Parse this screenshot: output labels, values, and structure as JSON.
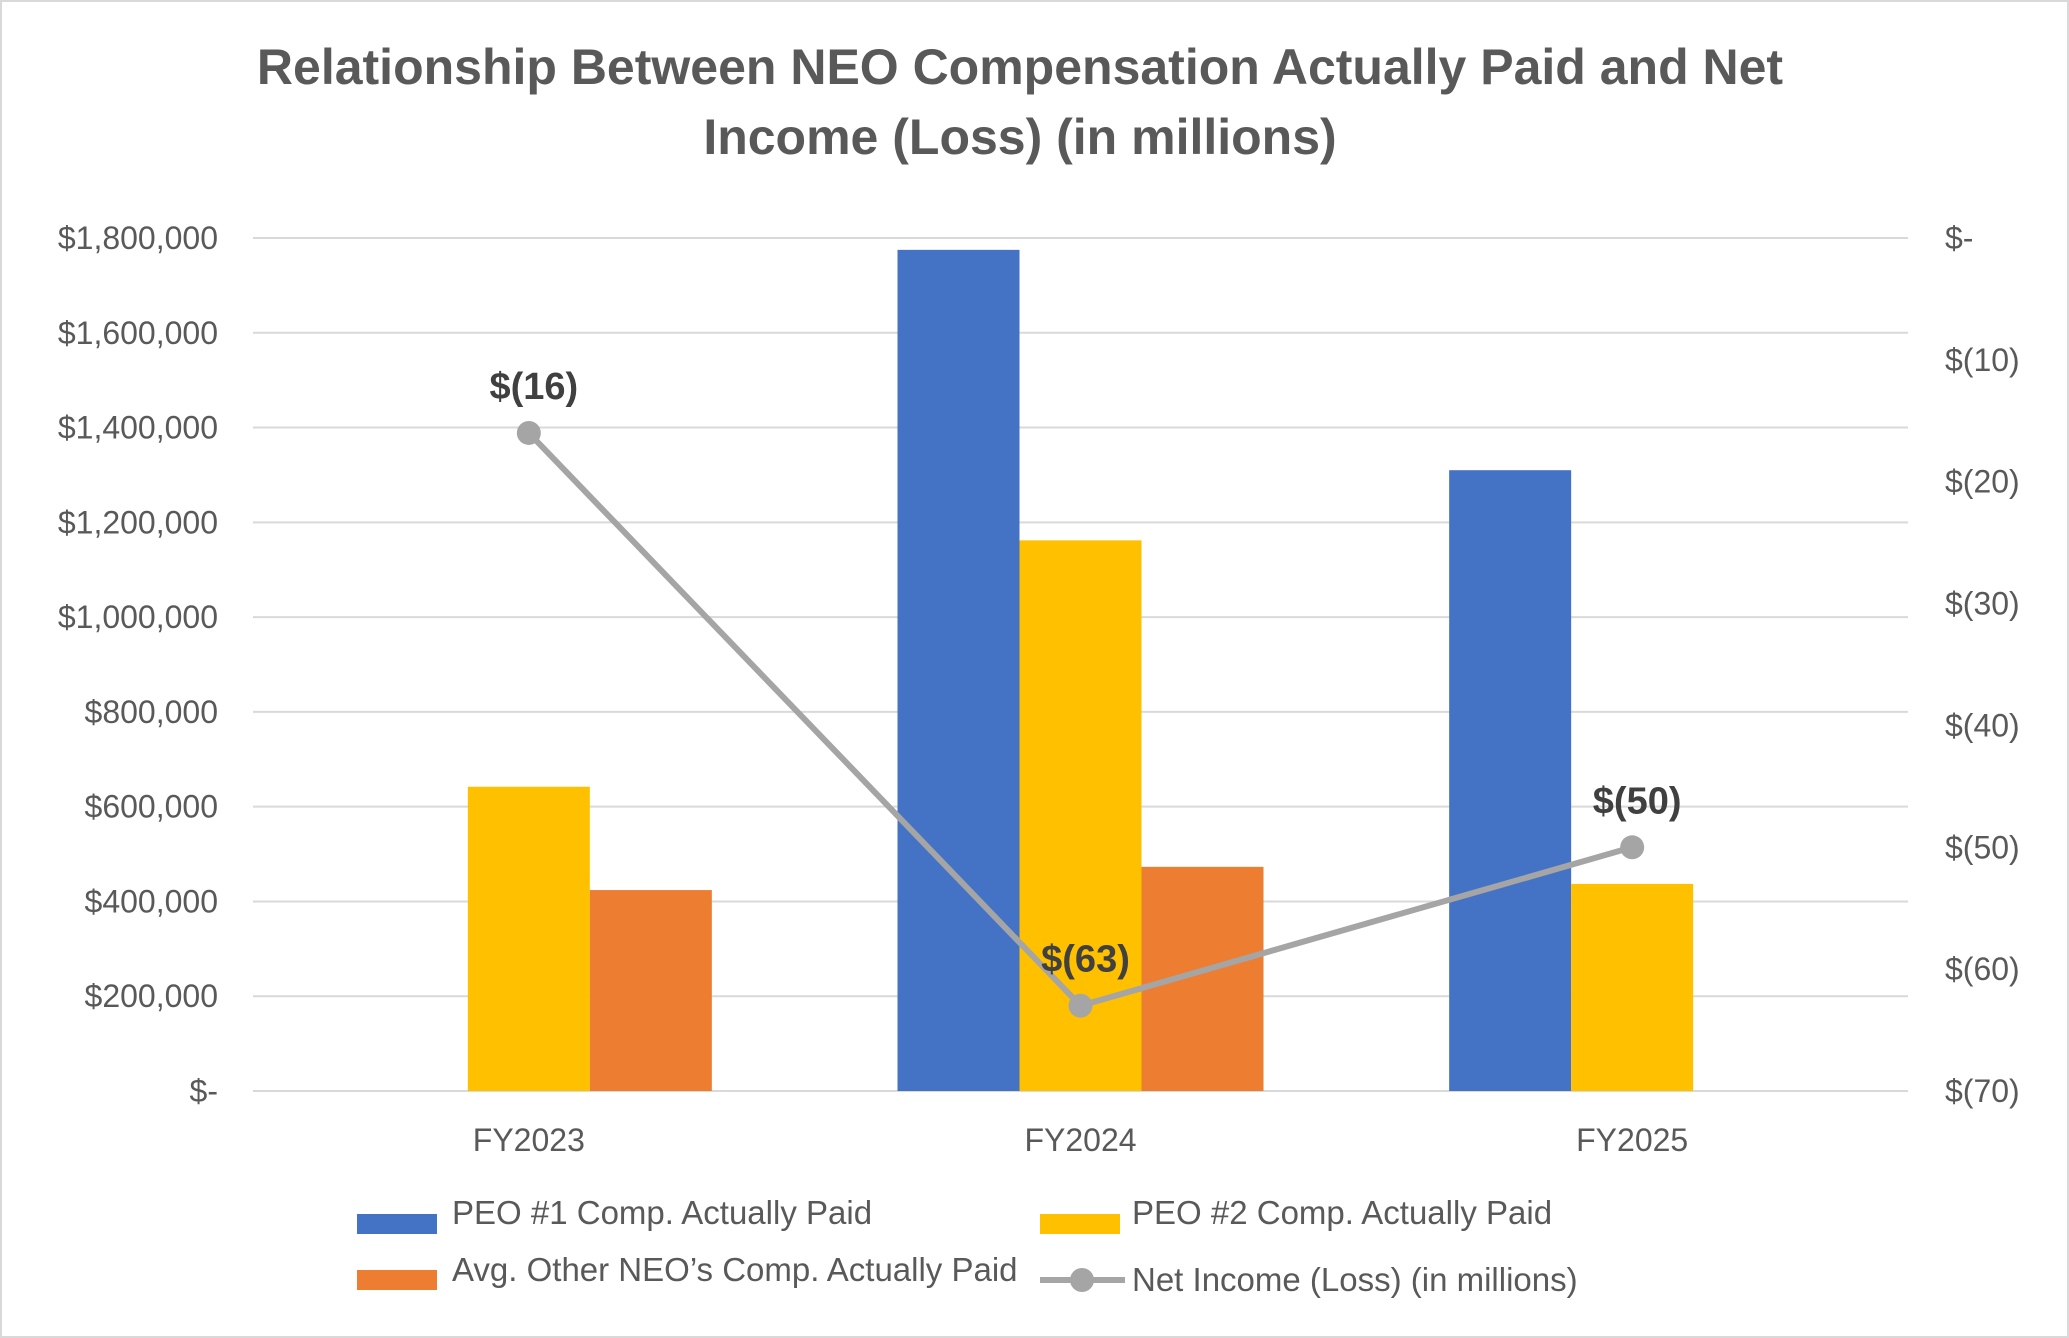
{
  "chart_data": {
    "type": "bar",
    "title_lines": [
      "Relationship Between NEO Compensation Actually Paid and Net",
      "Income (Loss) (in millions)"
    ],
    "categories": [
      "FY2023",
      "FY2024",
      "FY2025"
    ],
    "y_left": {
      "ylim": [
        0,
        1800000
      ],
      "tick_labels": [
        "$-",
        "$200,000",
        "$400,000",
        "$600,000",
        "$800,000",
        "$1,000,000",
        "$1,200,000",
        "$1,400,000",
        "$1,600,000",
        "$1,800,000"
      ]
    },
    "y_right": {
      "ylim": [
        -70,
        0
      ],
      "tick_labels": [
        "$(70)",
        "$(60)",
        "$(50)",
        "$(40)",
        "$(30)",
        "$(20)",
        "$(10)",
        "$-"
      ]
    },
    "series": [
      {
        "name": "PEO #1 Comp. Actually Paid",
        "type": "bar",
        "axis": "left",
        "color": "#4472C4",
        "values": [
          null,
          1775000,
          1310000
        ]
      },
      {
        "name": "PEO #2 Comp. Actually Paid",
        "type": "bar",
        "axis": "left",
        "color": "#FFC000",
        "values": [
          642000,
          1162000,
          437000
        ]
      },
      {
        "name": "Avg. Other NEO’s Comp. Actually Paid",
        "type": "bar",
        "axis": "left",
        "color": "#ED7D31",
        "values": [
          424000,
          null,
          null
        ]
      },
      {
        "name": "Net Income (Loss) (in millions)",
        "type": "line",
        "axis": "right",
        "color": "#A5A5A5",
        "values": [
          -16,
          -63,
          -50
        ],
        "labels": [
          "$(16)",
          "$(63)",
          "$(50)"
        ]
      }
    ],
    "extra_bar": {
      "series": "Avg. Other NEO’s Comp. Actually Paid",
      "category": "FY2024",
      "value": 473000
    },
    "grid": true,
    "legend_position": "bottom"
  }
}
